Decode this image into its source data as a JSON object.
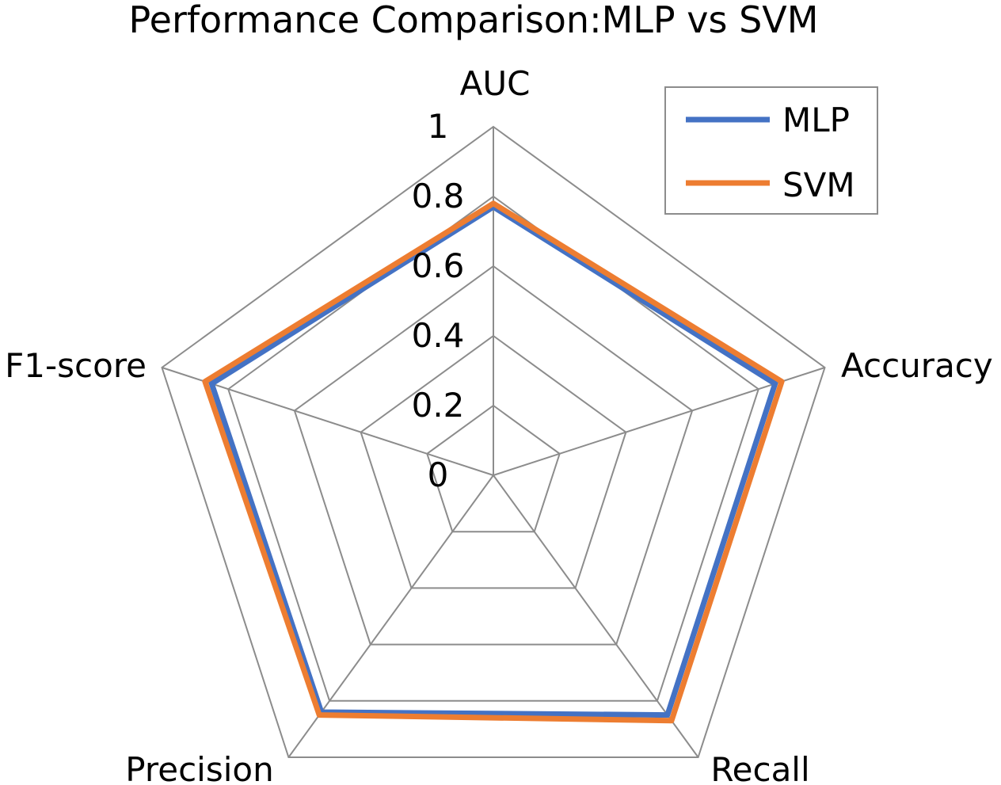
{
  "chart_data": {
    "type": "radar",
    "title": "Performance Comparison:MLP vs SVM",
    "axes": [
      "AUC",
      "Accuracy",
      "Recall",
      "Precision",
      "F1-score"
    ],
    "rmin": 0,
    "rmax": 1,
    "ticks": [
      0,
      0.2,
      0.4,
      0.6,
      0.8,
      1
    ],
    "tick_labels": [
      "0",
      "0.2",
      "0.4",
      "0.6",
      "0.8",
      "1"
    ],
    "series": [
      {
        "name": "MLP",
        "values": [
          0.77,
          0.85,
          0.85,
          0.84,
          0.85
        ],
        "color": "#4472C4"
      },
      {
        "name": "SVM",
        "values": [
          0.78,
          0.87,
          0.87,
          0.85,
          0.87
        ],
        "color": "#ED7D31"
      }
    ],
    "legend_position": "top-right",
    "grid_color": "#8c8c8c"
  }
}
